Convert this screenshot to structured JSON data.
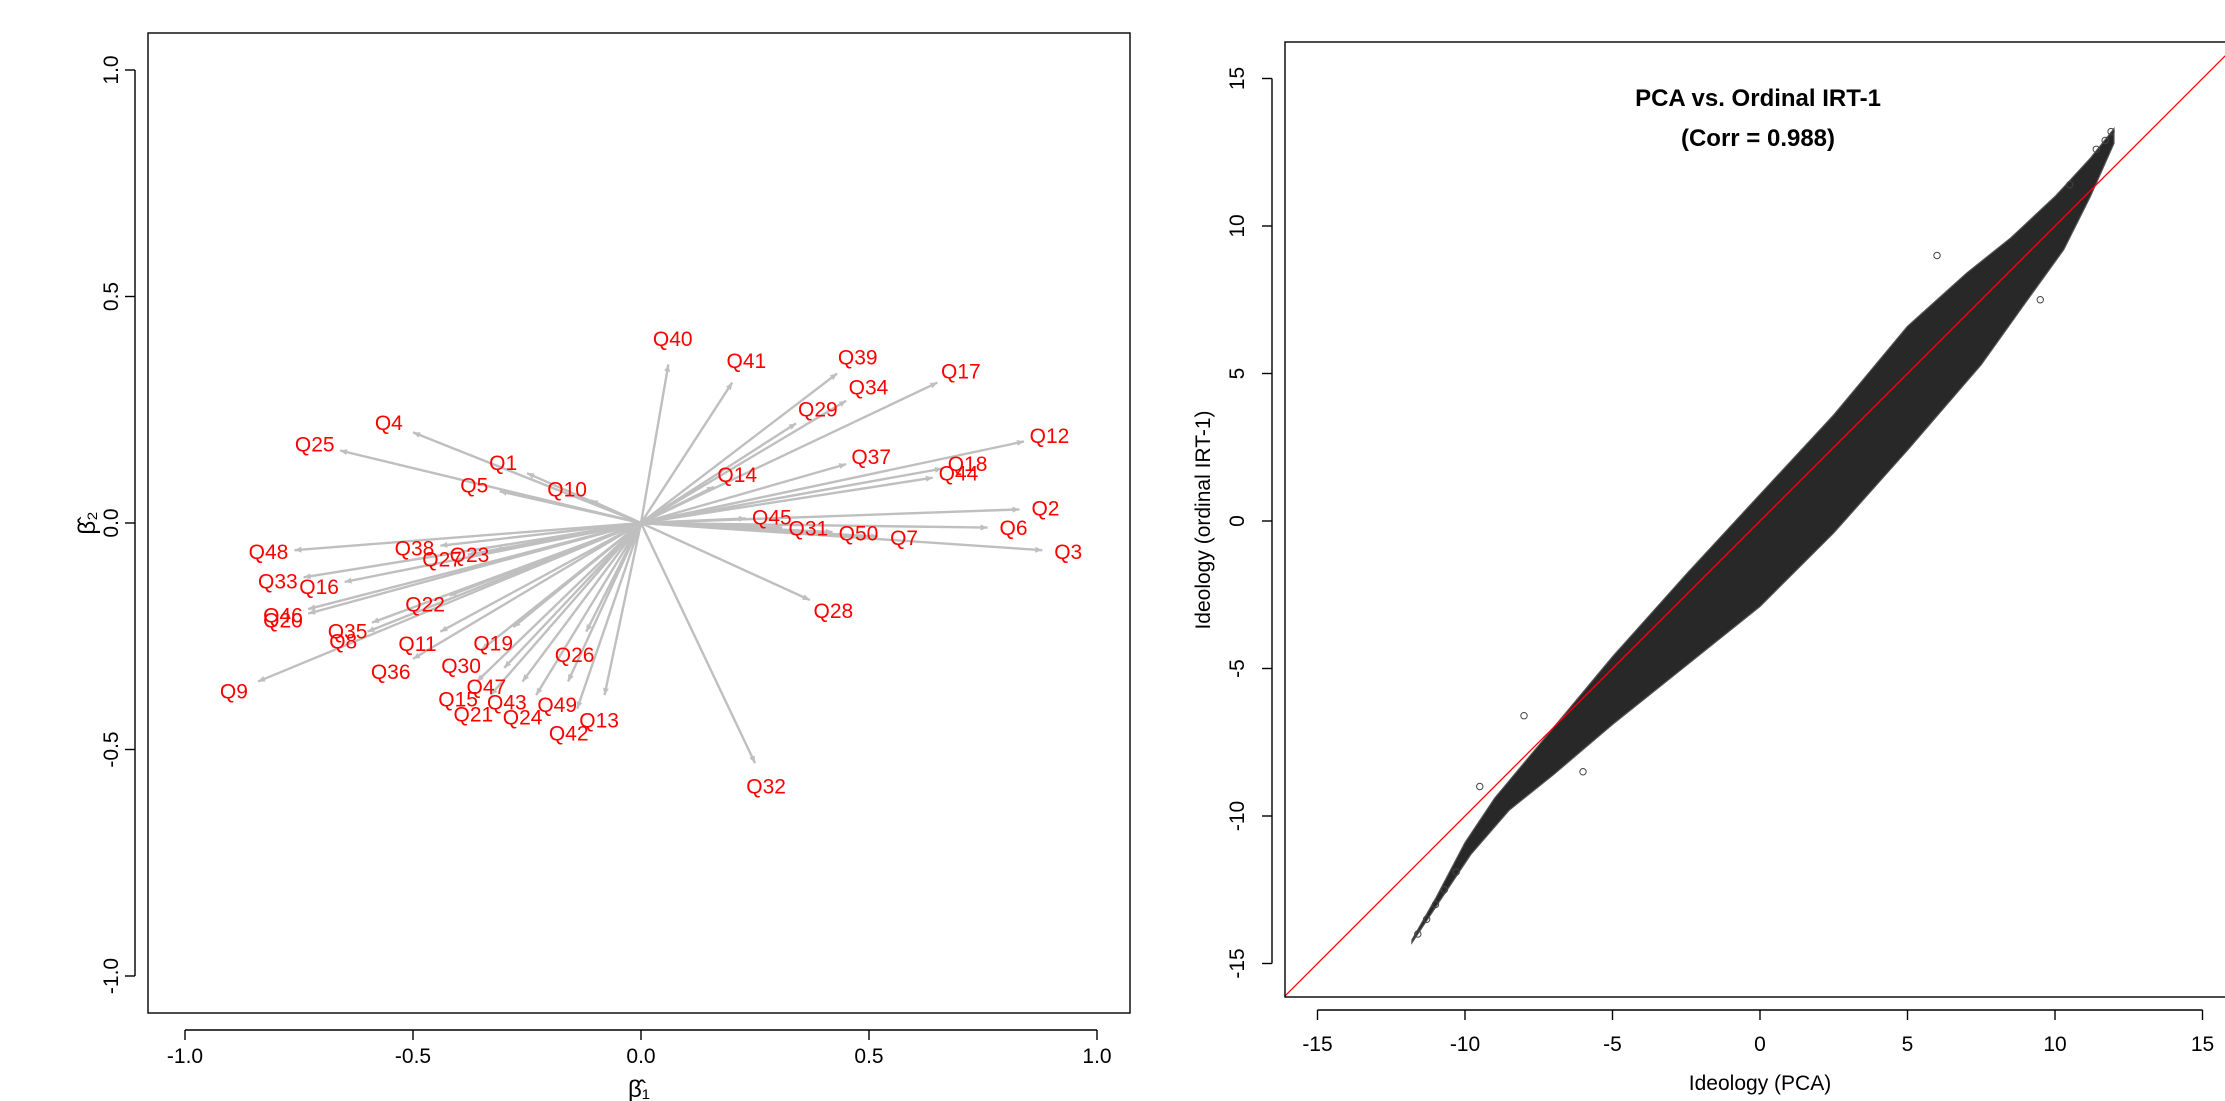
{
  "chart_data": [
    {
      "type": "biplot",
      "title": "",
      "xlabel": "β̂₁",
      "ylabel": "β̂₂",
      "xlim": [
        -1.05,
        1.08
      ],
      "ylim": [
        -1.08,
        1.08
      ],
      "xticks": [
        "-1.0",
        "-0.5",
        "0.0",
        "0.5",
        "1.0"
      ],
      "xtick_values": [
        -1.0,
        -0.5,
        0.0,
        0.5,
        1.0
      ],
      "yticks": [
        "-1.0",
        "-0.5",
        "0.0",
        "0.5",
        "1.0"
      ],
      "ytick_values": [
        -1.0,
        -0.5,
        0.0,
        0.5,
        1.0
      ],
      "colors": {
        "arrows": "#bfbfbf",
        "labels": "#ff0000"
      },
      "loadings": [
        {
          "label": "Q40",
          "x": 0.06,
          "y": 0.35
        },
        {
          "label": "Q41",
          "x": 0.2,
          "y": 0.31
        },
        {
          "label": "Q39",
          "x": 0.43,
          "y": 0.33
        },
        {
          "label": "Q17",
          "x": 0.65,
          "y": 0.31
        },
        {
          "label": "Q34",
          "x": 0.45,
          "y": 0.27
        },
        {
          "label": "Q29",
          "x": 0.34,
          "y": 0.22
        },
        {
          "label": "Q12",
          "x": 0.84,
          "y": 0.18
        },
        {
          "label": "Q37",
          "x": 0.45,
          "y": 0.13
        },
        {
          "label": "Q18",
          "x": 0.66,
          "y": 0.12
        },
        {
          "label": "Q44",
          "x": 0.64,
          "y": 0.1
        },
        {
          "label": "Q14",
          "x": 0.16,
          "y": 0.08
        },
        {
          "label": "Q4",
          "x": -0.5,
          "y": 0.2
        },
        {
          "label": "Q25",
          "x": -0.66,
          "y": 0.16
        },
        {
          "label": "Q1",
          "x": -0.25,
          "y": 0.11
        },
        {
          "label": "Q5",
          "x": -0.31,
          "y": 0.07
        },
        {
          "label": "Q10",
          "x": -0.11,
          "y": 0.05
        },
        {
          "label": "Q2",
          "x": 0.83,
          "y": 0.03
        },
        {
          "label": "Q45",
          "x": 0.23,
          "y": 0.01
        },
        {
          "label": "Q31",
          "x": 0.31,
          "y": -0.01
        },
        {
          "label": "Q50",
          "x": 0.42,
          "y": -0.02
        },
        {
          "label": "Q7",
          "x": 0.52,
          "y": -0.03
        },
        {
          "label": "Q6",
          "x": 0.76,
          "y": -0.01
        },
        {
          "label": "Q3",
          "x": 0.88,
          "y": -0.06
        },
        {
          "label": "Q28",
          "x": 0.37,
          "y": -0.17
        },
        {
          "label": "Q48",
          "x": -0.76,
          "y": -0.06
        },
        {
          "label": "Q38",
          "x": -0.44,
          "y": -0.05
        },
        {
          "label": "Q27",
          "x": -0.38,
          "y": -0.07
        },
        {
          "label": "Q23",
          "x": -0.32,
          "y": -0.06
        },
        {
          "label": "Q33",
          "x": -0.74,
          "y": -0.12
        },
        {
          "label": "Q16",
          "x": -0.65,
          "y": -0.13
        },
        {
          "label": "Q22",
          "x": -0.42,
          "y": -0.16
        },
        {
          "label": "Q46",
          "x": -0.73,
          "y": -0.19
        },
        {
          "label": "Q20",
          "x": -0.73,
          "y": -0.2
        },
        {
          "label": "Q35",
          "x": -0.59,
          "y": -0.22
        },
        {
          "label": "Q8",
          "x": -0.6,
          "y": -0.24
        },
        {
          "label": "Q11",
          "x": -0.44,
          "y": -0.24
        },
        {
          "label": "Q19",
          "x": -0.28,
          "y": -0.23
        },
        {
          "label": "Q26",
          "x": -0.12,
          "y": -0.24
        },
        {
          "label": "Q30",
          "x": -0.35,
          "y": -0.28
        },
        {
          "label": "Q36",
          "x": -0.5,
          "y": -0.3
        },
        {
          "label": "Q47",
          "x": -0.3,
          "y": -0.32
        },
        {
          "label": "Q15",
          "x": -0.36,
          "y": -0.35
        },
        {
          "label": "Q43",
          "x": -0.26,
          "y": -0.35
        },
        {
          "label": "Q49",
          "x": -0.16,
          "y": -0.35
        },
        {
          "label": "Q13",
          "x": -0.08,
          "y": -0.38
        },
        {
          "label": "Q21",
          "x": -0.33,
          "y": -0.38
        },
        {
          "label": "Q24",
          "x": -0.23,
          "y": -0.38
        },
        {
          "label": "Q42",
          "x": -0.14,
          "y": -0.41
        },
        {
          "label": "Q9",
          "x": -0.84,
          "y": -0.35
        },
        {
          "label": "Q32",
          "x": 0.25,
          "y": -0.53
        }
      ]
    },
    {
      "type": "scatter",
      "title": "PCA vs. Ordinal IRT-1",
      "subtitle": "(Corr = 0.988)",
      "xlabel": "Ideology (PCA)",
      "ylabel": "Ideology (ordinal IRT-1)",
      "xlim": [
        -16.2,
        15.8
      ],
      "ylim": [
        -16.2,
        16.2
      ],
      "xticks": [
        "-15",
        "-10",
        "-5",
        "0",
        "5",
        "10",
        "15"
      ],
      "xtick_values": [
        -15,
        -10,
        -5,
        0,
        5,
        10,
        15
      ],
      "yticks": [
        "-15",
        "-10",
        "-5",
        "0",
        "5",
        "10",
        "15"
      ],
      "ytick_values": [
        -15,
        -10,
        -5,
        0,
        5,
        10,
        15
      ],
      "reference_line": {
        "slope": 1,
        "intercept": 0,
        "color": "#ff0000"
      },
      "point_color": "#222222",
      "cloud_extent": {
        "x_min": -11.8,
        "x_max": 12.0,
        "y_min": -14.3,
        "y_max": 13.3
      },
      "correlation": 0.988
    }
  ]
}
